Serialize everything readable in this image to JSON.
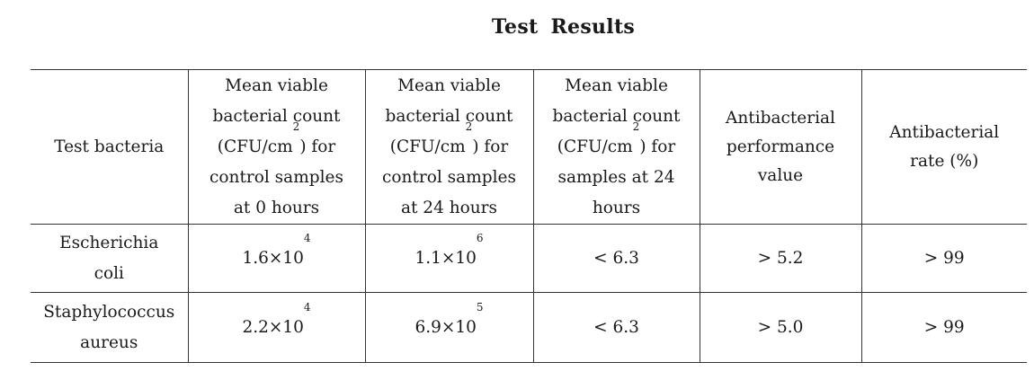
{
  "title": "Test  Results",
  "table": {
    "headers": [
      "Test bacteria",
      "Mean viable bacterial count (CFU/cm2) for control samples at 0 hours",
      "Mean viable bacterial count (CFU/cm2) for control samples at 24 hours",
      "Mean viable bacterial count (CFU/cm2) for samples at 24 hours",
      "Antibacterial performance value",
      "Antibacterial rate (%)"
    ],
    "header_lines": [
      [
        "Test bacteria"
      ],
      [
        "Mean viable",
        "bacterial count",
        "(CFU/cm",
        ") for",
        "control samples",
        "at 0 hours"
      ],
      [
        "Mean viable",
        "bacterial count",
        "(CFU/cm",
        ") for",
        "control samples",
        "at 24 hours"
      ],
      [
        "Mean viable",
        "bacterial count",
        "(CFU/cm",
        ") for",
        "samples at 24",
        "hours"
      ],
      [
        "Antibacterial",
        "performance",
        "value"
      ],
      [
        "Antibacterial",
        "rate (%)"
      ]
    ],
    "superscript_two": "2",
    "rows": [
      {
        "bacteria_lines": [
          "Escherichia",
          "coli"
        ],
        "control_0h": {
          "mantissa": "1.6×10",
          "exponent": "4"
        },
        "control_24h": {
          "mantissa": "1.1×10",
          "exponent": "6"
        },
        "sample_24h": "< 6.3",
        "performance": "> 5.2",
        "rate": "> 99"
      },
      {
        "bacteria_lines": [
          "Staphylococcus",
          "aureus"
        ],
        "control_0h": {
          "mantissa": "2.2×10",
          "exponent": "4"
        },
        "control_24h": {
          "mantissa": "6.9×10",
          "exponent": "5"
        },
        "sample_24h": "< 6.3",
        "performance": "> 5.0",
        "rate": "> 99"
      }
    ]
  }
}
